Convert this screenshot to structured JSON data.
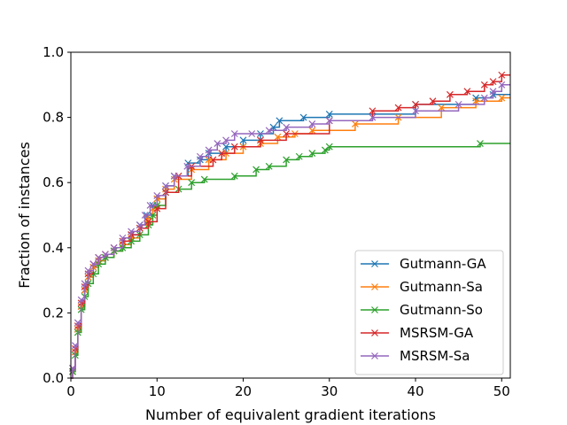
{
  "chart_data": {
    "type": "line",
    "step": true,
    "xlabel": "Number of equivalent gradient iterations",
    "ylabel": "Fraction of instances",
    "xlim": [
      0,
      51
    ],
    "ylim": [
      0.0,
      1.0
    ],
    "xticks": [
      0,
      10,
      20,
      30,
      40,
      50
    ],
    "yticks": [
      0.0,
      0.2,
      0.4,
      0.6,
      0.8,
      1.0
    ],
    "xtick_labels": [
      "0",
      "10",
      "20",
      "30",
      "40",
      "50"
    ],
    "ytick_labels": [
      "0.0",
      "0.2",
      "0.4",
      "0.6",
      "0.8",
      "1.0"
    ],
    "grid": false,
    "legend_position": "bottom-right",
    "marker": "x",
    "series": [
      {
        "name": "Gutmann-GA",
        "color": "#1f77b4",
        "x": [
          0.2,
          0.5,
          0.8,
          1.2,
          1.6,
          2.0,
          2.6,
          3.2,
          4.0,
          5.0,
          6.0,
          7.0,
          8.0,
          8.8,
          9.5,
          10.0,
          11.0,
          12.0,
          13.6,
          15.0,
          16.0,
          18.0,
          20.0,
          22.0,
          23.5,
          24.2,
          27.0,
          30.0,
          40.0,
          47.0,
          49.0,
          51.0
        ],
        "y": [
          0.02,
          0.08,
          0.15,
          0.22,
          0.27,
          0.31,
          0.34,
          0.36,
          0.37,
          0.39,
          0.41,
          0.44,
          0.47,
          0.5,
          0.53,
          0.55,
          0.59,
          0.62,
          0.66,
          0.67,
          0.69,
          0.71,
          0.73,
          0.75,
          0.77,
          0.79,
          0.8,
          0.81,
          0.84,
          0.86,
          0.87,
          0.87
        ]
      },
      {
        "name": "Gutmann-Sa",
        "color": "#ff7f0e",
        "x": [
          0.2,
          0.5,
          0.8,
          1.2,
          1.6,
          2.0,
          2.6,
          3.2,
          4.0,
          5.0,
          6.0,
          7.0,
          8.0,
          8.8,
          9.5,
          10.0,
          11.0,
          12.0,
          14.0,
          16.0,
          18.0,
          20.0,
          22.0,
          24.0,
          26.0,
          28.0,
          33.0,
          38.0,
          43.0,
          47.0,
          50.0,
          51.0
        ],
        "y": [
          0.02,
          0.08,
          0.15,
          0.22,
          0.27,
          0.31,
          0.34,
          0.36,
          0.37,
          0.39,
          0.41,
          0.43,
          0.46,
          0.49,
          0.52,
          0.55,
          0.58,
          0.61,
          0.64,
          0.67,
          0.69,
          0.71,
          0.72,
          0.74,
          0.75,
          0.76,
          0.78,
          0.8,
          0.83,
          0.85,
          0.86,
          0.86
        ]
      },
      {
        "name": "Gutmann-So",
        "color": "#2ca02c",
        "x": [
          0.2,
          0.5,
          0.8,
          1.2,
          1.6,
          2.0,
          2.6,
          3.2,
          4.0,
          5.0,
          6.0,
          7.0,
          8.0,
          9.0,
          9.5,
          10.0,
          11.0,
          12.5,
          14.0,
          15.5,
          19.0,
          21.5,
          23.0,
          25.0,
          26.5,
          28.0,
          29.5,
          30.0,
          47.5,
          51.0
        ],
        "y": [
          0.02,
          0.07,
          0.14,
          0.21,
          0.25,
          0.29,
          0.32,
          0.35,
          0.37,
          0.39,
          0.4,
          0.42,
          0.44,
          0.47,
          0.5,
          0.53,
          0.57,
          0.58,
          0.6,
          0.61,
          0.62,
          0.64,
          0.65,
          0.67,
          0.68,
          0.69,
          0.7,
          0.71,
          0.72,
          0.72
        ]
      },
      {
        "name": "MSRSM-GA",
        "color": "#d62728",
        "x": [
          0.2,
          0.5,
          0.8,
          1.2,
          1.6,
          2.0,
          2.6,
          3.2,
          4.0,
          5.0,
          6.0,
          7.0,
          8.0,
          9.0,
          10.0,
          11.0,
          12.5,
          14.0,
          16.5,
          17.5,
          19.0,
          22.0,
          25.0,
          30.0,
          35.0,
          38.0,
          40.0,
          42.0,
          44.0,
          46.0,
          48.0,
          49.0,
          50.0,
          51.0
        ],
        "y": [
          0.03,
          0.09,
          0.16,
          0.23,
          0.28,
          0.32,
          0.35,
          0.37,
          0.38,
          0.4,
          0.42,
          0.44,
          0.46,
          0.48,
          0.52,
          0.57,
          0.62,
          0.65,
          0.67,
          0.69,
          0.71,
          0.73,
          0.75,
          0.79,
          0.82,
          0.83,
          0.84,
          0.85,
          0.87,
          0.88,
          0.9,
          0.91,
          0.93,
          0.93
        ]
      },
      {
        "name": "MSRSM-Sa",
        "color": "#9467bd",
        "x": [
          0.2,
          0.5,
          0.8,
          1.2,
          1.6,
          2.0,
          2.6,
          3.2,
          4.0,
          5.0,
          6.0,
          7.0,
          8.0,
          8.6,
          9.2,
          10.0,
          11.0,
          12.0,
          13.5,
          15.0,
          16.0,
          17.0,
          18.0,
          19.0,
          21.0,
          23.0,
          25.0,
          28.0,
          30.0,
          35.0,
          40.0,
          45.0,
          48.0,
          49.0,
          50.0,
          51.0
        ],
        "y": [
          0.03,
          0.1,
          0.17,
          0.24,
          0.29,
          0.33,
          0.35,
          0.37,
          0.38,
          0.4,
          0.43,
          0.45,
          0.47,
          0.5,
          0.53,
          0.56,
          0.59,
          0.62,
          0.65,
          0.68,
          0.7,
          0.72,
          0.73,
          0.75,
          0.75,
          0.76,
          0.77,
          0.78,
          0.79,
          0.8,
          0.82,
          0.84,
          0.86,
          0.88,
          0.9,
          0.9
        ]
      }
    ]
  }
}
